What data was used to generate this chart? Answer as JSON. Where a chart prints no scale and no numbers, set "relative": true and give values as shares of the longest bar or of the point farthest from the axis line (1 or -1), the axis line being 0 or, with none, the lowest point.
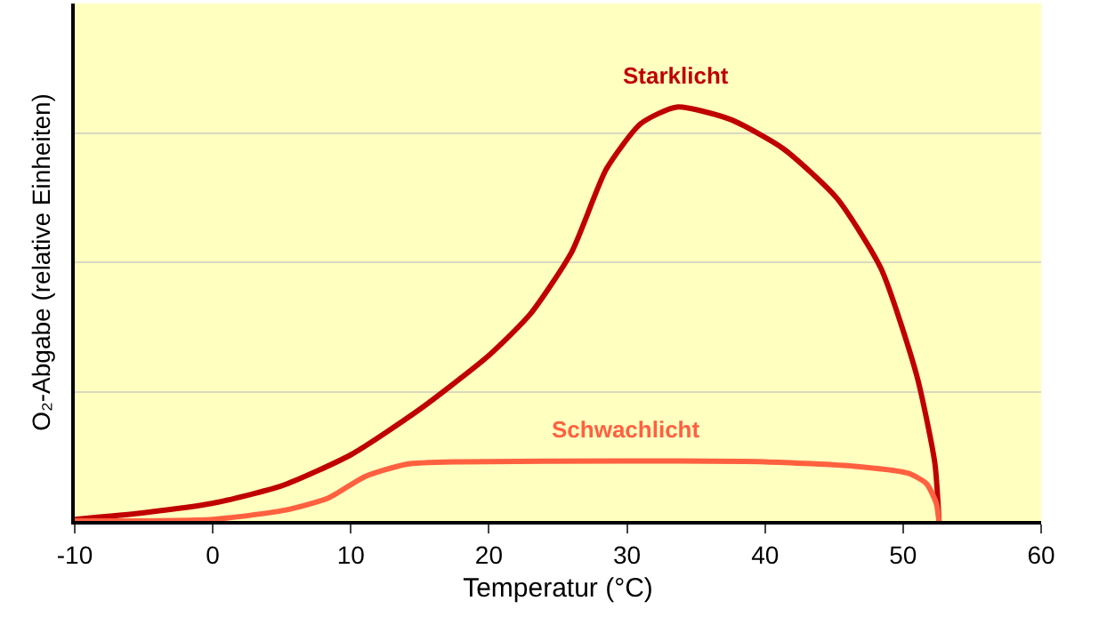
{
  "chart_data": {
    "type": "line",
    "relative": true,
    "xlabel": "Temperatur (°C)",
    "ylabel": "O₂-Abgabe (relative Einheiten)",
    "xlim": [
      -10,
      60
    ],
    "xticks": [
      -10,
      0,
      10,
      20,
      30,
      40,
      50,
      60
    ],
    "grid": "y",
    "legend": false,
    "marker": "none",
    "line_style": "solid",
    "series": [
      {
        "name": "Starklicht",
        "color": "#c00000",
        "x": [
          -10,
          -5,
          0,
          5,
          10,
          15,
          20,
          23,
          26,
          28.5,
          31,
          33.6,
          37.5,
          41.3,
          45.2,
          48.4,
          51,
          52.3,
          52.6
        ],
        "values": [
          0.004,
          0.02,
          0.043,
          0.085,
          0.16,
          0.27,
          0.4,
          0.5,
          0.65,
          0.85,
          0.96,
          1,
          0.97,
          0.9,
          0.78,
          0.61,
          0.35,
          0.14,
          0
        ]
      },
      {
        "name": "Schwachlicht",
        "color": "#ff6040",
        "x": [
          -10,
          0,
          5.2,
          8.4,
          11,
          14,
          18,
          30,
          40,
          46.5,
          50.4,
          51.7,
          52.4,
          52.6
        ],
        "values": [
          0,
          0.004,
          0.026,
          0.056,
          0.107,
          0.137,
          0.143,
          0.145,
          0.143,
          0.132,
          0.115,
          0.09,
          0.043,
          0
        ]
      }
    ]
  }
}
